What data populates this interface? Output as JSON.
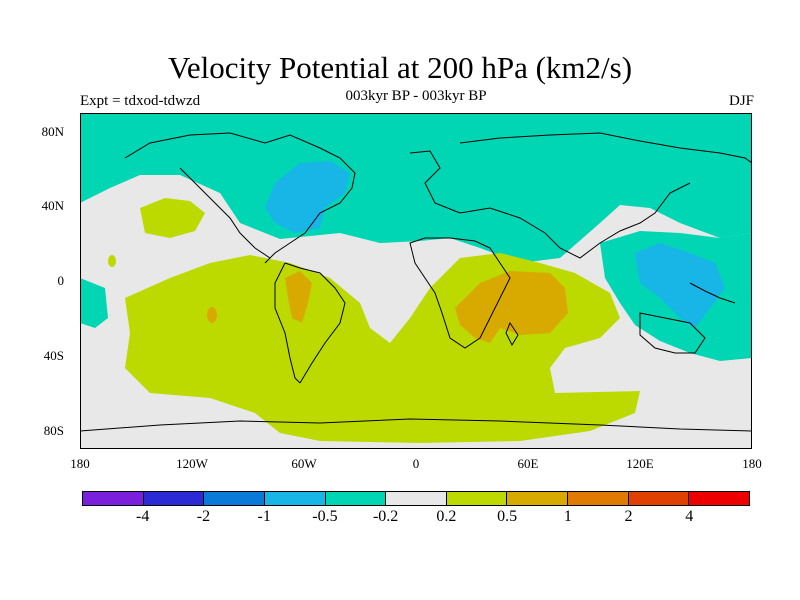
{
  "title": "Velocity Potential at 200 hPa (km2/s)",
  "subtitle_left": "Expt = tdxod-tdwzd",
  "subtitle_center": "003kyr BP - 003kyr BP",
  "subtitle_right": "DJF",
  "lat_labels": [
    "80N",
    "40N",
    "0",
    "40S",
    "80S"
  ],
  "lon_labels": [
    "180",
    "120W",
    "60W",
    "0",
    "60E",
    "120E",
    "180"
  ],
  "colorbar": {
    "colors": [
      "#7a1fdc",
      "#2b2bd6",
      "#0a7ad9",
      "#18b6e6",
      "#00d6b4",
      "#e8e8e8",
      "#bcda00",
      "#d8aa00",
      "#e07a00",
      "#e04000",
      "#ee0000"
    ],
    "labels": [
      "-4",
      "-2",
      "-1",
      "-0.5",
      "-0.2",
      "0.2",
      "0.5",
      "1",
      "2",
      "4"
    ]
  }
}
